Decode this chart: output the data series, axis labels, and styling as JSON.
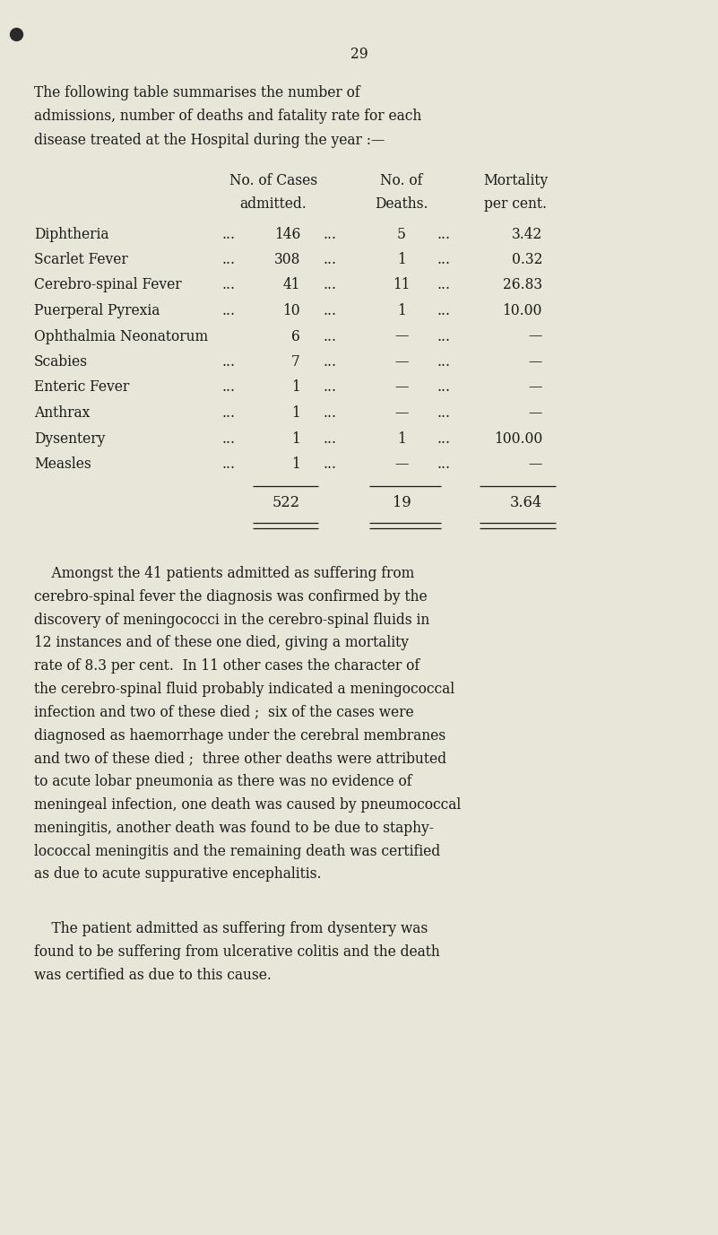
{
  "page_number": "29",
  "bg_color": "#e8e6d8",
  "text_color": "#1a1a1a",
  "intro_text": "The following table summarises the number of\nadmissions, number of deaths and fatality rate for each\ndisease treated at the Hospital during the year :—",
  "table_rows": [
    {
      "disease": "Diphtheria",
      "dots1": "...",
      "cases": "146",
      "dots2": "...",
      "deaths": "5",
      "dots3": "...",
      "mortality": "3.42"
    },
    {
      "disease": "Scarlet Fever",
      "dots1": "...",
      "cases": "308",
      "dots2": "...",
      "deaths": "1",
      "dots3": "...",
      "mortality": "0.32"
    },
    {
      "disease": "Cerebro-spinal Fever",
      "dots1": "...",
      "cases": "41",
      "dots2": "...",
      "deaths": "11",
      "dots3": "...",
      "mortality": "26.83"
    },
    {
      "disease": "Puerperal Pyrexia",
      "dots1": "...",
      "cases": "10",
      "dots2": "...",
      "deaths": "1",
      "dots3": "...",
      "mortality": "10.00"
    },
    {
      "disease": "Ophthalmia Neonatorum",
      "dots1": "",
      "cases": "6",
      "dots2": "...",
      "deaths": "—",
      "dots3": "...",
      "mortality": "—"
    },
    {
      "disease": "Scabies",
      "dots1": "...",
      "cases": "7",
      "dots2": "...",
      "deaths": "—",
      "dots3": "...",
      "mortality": "—"
    },
    {
      "disease": "Enteric Fever",
      "dots1": "...",
      "cases": "1",
      "dots2": "...",
      "deaths": "—",
      "dots3": "...",
      "mortality": "—"
    },
    {
      "disease": "Anthrax",
      "dots1": "...",
      "cases": "1",
      "dots2": "...",
      "deaths": "—",
      "dots3": "...",
      "mortality": "—"
    },
    {
      "disease": "Dysentery",
      "dots1": "...",
      "cases": "1",
      "dots2": "...",
      "deaths": "1",
      "dots3": "...",
      "mortality": "100.00"
    },
    {
      "disease": "Measles",
      "dots1": "...",
      "cases": "1",
      "dots2": "...",
      "deaths": "—",
      "dots3": "...",
      "mortality": "—"
    }
  ],
  "totals": {
    "cases": "522",
    "deaths": "19",
    "mortality": "3.64"
  },
  "paragraph1_lines": [
    "    Amongst the 41 patients admitted as suffering from",
    "cerebro-spinal fever the diagnosis was confirmed by the",
    "discovery of meningococci in the cerebro-spinal fluids in",
    "12 instances and of these one died, giving a mortality",
    "rate of 8.3 per cent.  In 11 other cases the character of",
    "the cerebro-spinal fluid probably indicated a meningococcal",
    "infection and two of these died ;  six of the cases were",
    "diagnosed as haemorrhage under the cerebral membranes",
    "and two of these died ;  three other deaths were attributed",
    "to acute lobar pneumonia as there was no evidence of",
    "meningeal infection, one death was caused by pneumococcal",
    "meningitis, another death was found to be due to staphy-",
    "lococcal meningitis and the remaining death was certified",
    "as due to acute suppurative encephalitis."
  ],
  "paragraph2_lines": [
    "    The patient admitted as suffering from dysentery was",
    "found to be suffering from ulcerative colitis and the death",
    "was certified as due to this cause."
  ],
  "figsize": [
    8.01,
    13.77
  ],
  "dpi": 100
}
